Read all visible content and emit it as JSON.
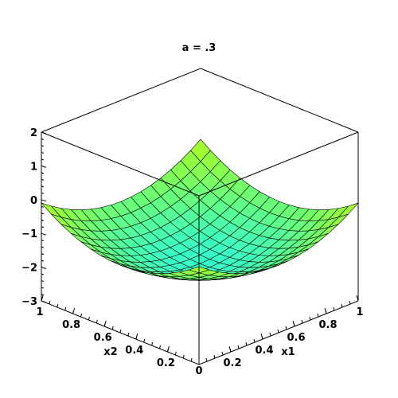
{
  "chart_data": {
    "type": "surface3d",
    "title": "a = .3",
    "xlabel": "x1",
    "ylabel": "x2",
    "zlabel": "",
    "xlim": [
      0,
      1
    ],
    "ylim": [
      0,
      1
    ],
    "zlim": [
      -3,
      2
    ],
    "z_ticks": [
      "2",
      "1",
      "0",
      "−1",
      "−2",
      "−3"
    ],
    "x1_ticks": [
      "0.2",
      "0.4",
      "0.6",
      "0.8",
      "1"
    ],
    "x2_ticks": [
      "1",
      "0.8",
      "0.6",
      "0.4",
      "0.2"
    ],
    "origin_tick": "0",
    "grid": false,
    "surface_colors": {
      "high": "#ffff33",
      "mid": "#99ff33",
      "low": "#33ffcc",
      "mesh": "#000000"
    }
  }
}
